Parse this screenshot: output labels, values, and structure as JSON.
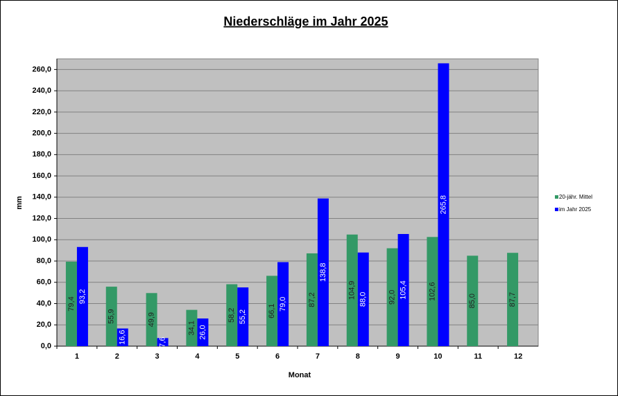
{
  "chart_data": {
    "type": "bar",
    "title": "Niederschläge im Jahr  2025",
    "x_label": "Monat",
    "y_label": "mm",
    "categories": [
      "1",
      "2",
      "3",
      "4",
      "5",
      "6",
      "7",
      "8",
      "9",
      "10",
      "11",
      "12"
    ],
    "series": [
      {
        "name": "20-jähr. Mittel",
        "color": "#339966",
        "values": [
          79.4,
          55.9,
          49.9,
          34.1,
          58.2,
          66.1,
          87.2,
          104.9,
          92.0,
          102.6,
          85.0,
          87.7
        ],
        "value_labels": [
          "79,4",
          "55,9",
          "49,9",
          "34,1",
          "58,2",
          "66,1",
          "87,2",
          "104,9",
          "92,0",
          "102,6",
          "85,0",
          "87,7"
        ]
      },
      {
        "name": "im Jahr 2025",
        "color": "#0000ff",
        "values": [
          93.2,
          16.6,
          7.6,
          26.0,
          55.2,
          79.0,
          138.8,
          88.0,
          105.4,
          265.8,
          null,
          null
        ],
        "value_labels": [
          "93,2",
          "16,6",
          "7,6",
          "26,0",
          "55,2",
          "79,0",
          "138,8",
          "88,0",
          "105,4",
          "265,8",
          null,
          null
        ]
      }
    ],
    "ylim": [
      0,
      270
    ],
    "yticks": [
      {
        "value": 0,
        "label": "0,0"
      },
      {
        "value": 20,
        "label": "20,0"
      },
      {
        "value": 40,
        "label": "40,0"
      },
      {
        "value": 60,
        "label": "60,0"
      },
      {
        "value": 80,
        "label": "80,0"
      },
      {
        "value": 100,
        "label": "100,0"
      },
      {
        "value": 120,
        "label": "120,0"
      },
      {
        "value": 140,
        "label": "140,0"
      },
      {
        "value": 160,
        "label": "160,0"
      },
      {
        "value": 180,
        "label": "180,0"
      },
      {
        "value": 200,
        "label": "200,0"
      },
      {
        "value": 220,
        "label": "220,0"
      },
      {
        "value": 240,
        "label": "240,0"
      },
      {
        "value": 260,
        "label": "260,0"
      }
    ],
    "grid": true,
    "legend": "right"
  }
}
